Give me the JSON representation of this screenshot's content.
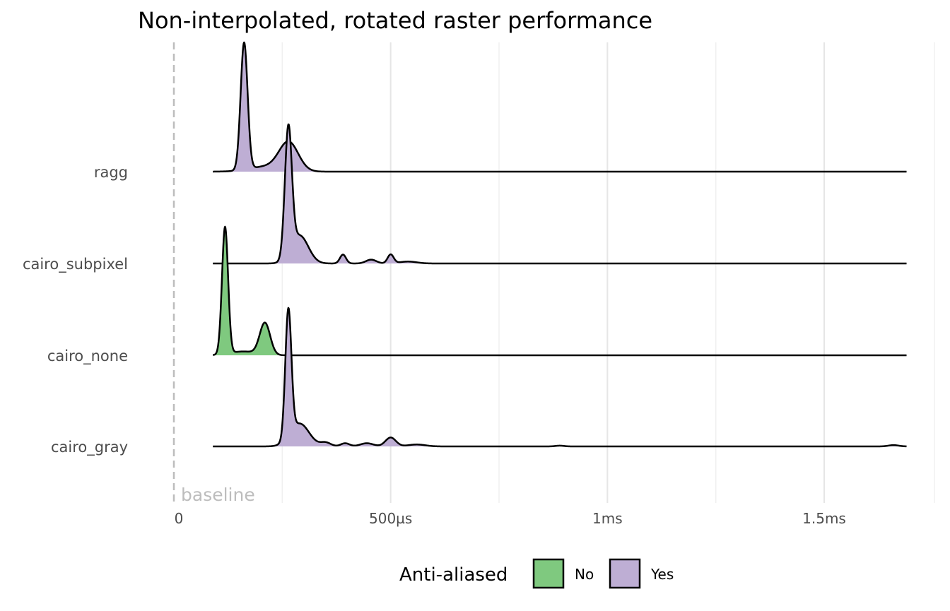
{
  "chart_data": {
    "type": "ridgeline",
    "title": "Non-interpolated, rotated raster performance",
    "xlabel": "",
    "ylabel": "",
    "x_unit": "µs",
    "xlim": [
      -5,
      1725
    ],
    "x_ticks": [
      {
        "value": 0,
        "label": "0"
      },
      {
        "value": 500,
        "label": "500µs"
      },
      {
        "value": 1000,
        "label": "1ms"
      },
      {
        "value": 1500,
        "label": "1.5ms"
      }
    ],
    "grid": true,
    "baseline": {
      "value": 0,
      "label": "baseline",
      "color": "#bdbdbd"
    },
    "legend": {
      "title": "Anti-aliased",
      "position": "bottom",
      "entries": [
        {
          "label": "No",
          "color": "#7fc97f"
        },
        {
          "label": "Yes",
          "color": "#beaed4"
        }
      ]
    },
    "series": [
      {
        "name": "ragg",
        "anti_aliased": "Yes",
        "x_range": [
          90,
          1690
        ],
        "peaks": [
          {
            "x": 162,
            "height": 1.0,
            "width": 8
          },
          {
            "x": 265,
            "height": 0.22,
            "width": 22
          },
          {
            "x": 215,
            "height": 0.04,
            "width": 40
          }
        ]
      },
      {
        "name": "cairo_subpixel",
        "anti_aliased": "Yes",
        "x_range": [
          90,
          1690
        ],
        "peaks": [
          {
            "x": 264,
            "height": 1.0,
            "width": 8
          },
          {
            "x": 290,
            "height": 0.22,
            "width": 20
          },
          {
            "x": 390,
            "height": 0.07,
            "width": 7
          },
          {
            "x": 455,
            "height": 0.03,
            "width": 12
          },
          {
            "x": 500,
            "height": 0.07,
            "width": 7
          },
          {
            "x": 540,
            "height": 0.015,
            "width": 20
          }
        ]
      },
      {
        "name": "cairo_none",
        "anti_aliased": "No",
        "x_range": [
          90,
          1690
        ],
        "peaks": [
          {
            "x": 118,
            "height": 1.0,
            "width": 7
          },
          {
            "x": 210,
            "height": 0.25,
            "width": 12
          },
          {
            "x": 160,
            "height": 0.03,
            "width": 30
          }
        ]
      },
      {
        "name": "cairo_gray",
        "anti_aliased": "Yes",
        "x_range": [
          90,
          1690
        ],
        "peaks": [
          {
            "x": 264,
            "height": 1.0,
            "width": 7
          },
          {
            "x": 290,
            "height": 0.18,
            "width": 22
          },
          {
            "x": 350,
            "height": 0.03,
            "width": 12
          },
          {
            "x": 395,
            "height": 0.025,
            "width": 10
          },
          {
            "x": 445,
            "height": 0.025,
            "width": 15
          },
          {
            "x": 500,
            "height": 0.07,
            "width": 12
          },
          {
            "x": 560,
            "height": 0.015,
            "width": 20
          },
          {
            "x": 890,
            "height": 0.006,
            "width": 10
          },
          {
            "x": 1660,
            "height": 0.01,
            "width": 12
          }
        ]
      }
    ]
  }
}
